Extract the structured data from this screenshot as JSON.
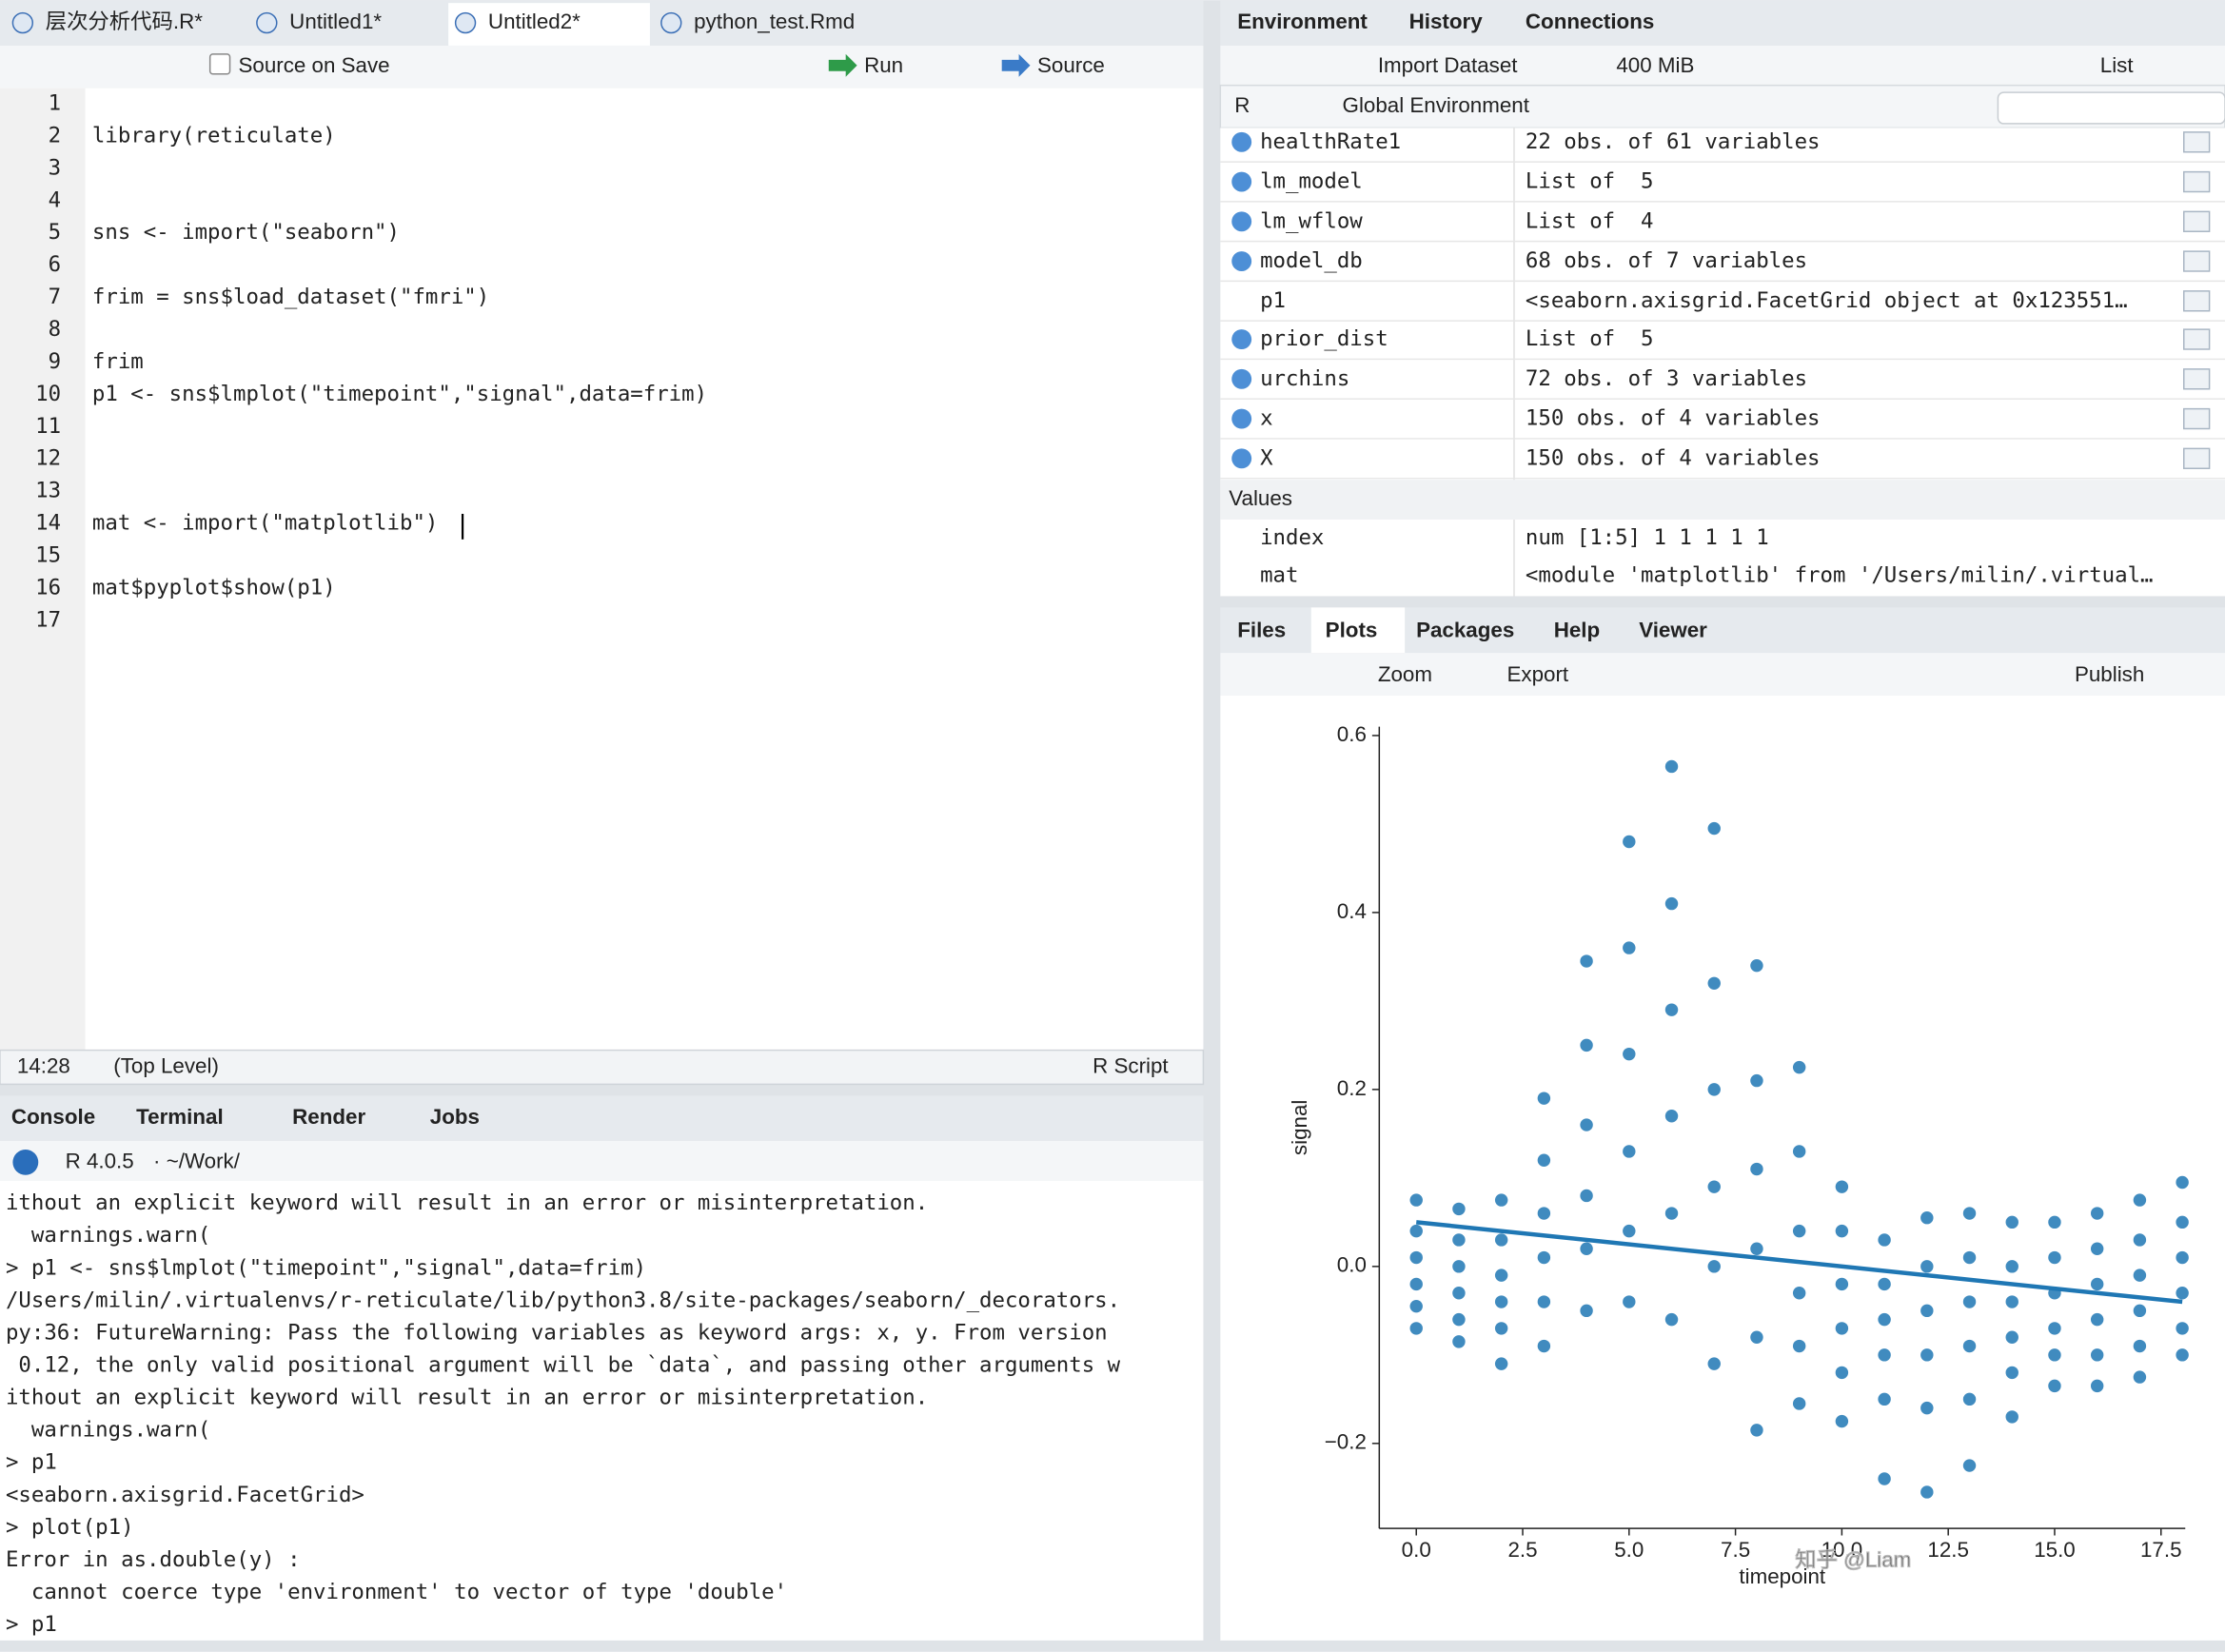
{
  "source_pane": {
    "tabs": [
      {
        "label": "层次分析代码.R*",
        "modified": true
      },
      {
        "label": "Untitled1*",
        "modified": true
      },
      {
        "label": "Untitled2*",
        "modified": true,
        "active": true
      },
      {
        "label": "python_test.Rmd",
        "modified": false
      }
    ],
    "toolbar": {
      "source_on_save": "Source on Save",
      "run": "Run",
      "source": "Source"
    },
    "line_numbers": [
      1,
      2,
      3,
      4,
      5,
      6,
      7,
      8,
      9,
      10,
      11,
      12,
      13,
      14,
      15,
      16,
      17
    ],
    "code": [
      {
        "line": 2,
        "text": "library(reticulate)"
      },
      {
        "line": 5,
        "text": "sns <- import(\"seaborn\")"
      },
      {
        "line": 7,
        "text": "frim = sns$load_dataset(\"fmri\")"
      },
      {
        "line": 9,
        "text": "frim"
      },
      {
        "line": 10,
        "text": "p1 <- sns$lmplot(\"timepoint\",\"signal\",data=frim)"
      },
      {
        "line": 14,
        "text": "mat <- import(\"matplotlib\")"
      },
      {
        "line": 16,
        "text": "mat$pyplot$show(p1)"
      }
    ],
    "status": {
      "position": "14:28",
      "scope": "(Top Level)",
      "file_type": "R Script"
    }
  },
  "console_pane": {
    "tabs": [
      "Console",
      "Terminal",
      "Render",
      "Jobs"
    ],
    "version": "R 4.0.5",
    "path": "· ~/Work/",
    "lines": [
      {
        "text": "ithout an explicit keyword will result in an error or misinterpretation.",
        "kind": "error"
      },
      {
        "text": "  warnings.warn(",
        "kind": "error"
      },
      {
        "text": "> p1 <- sns$lmplot(\"timepoint\",\"signal\",data=frim)",
        "kind": "input"
      },
      {
        "text": "/Users/milin/.virtualenvs/r-reticulate/lib/python3.8/site-packages/seaborn/_decorators.",
        "kind": "error"
      },
      {
        "text": "py:36: FutureWarning: Pass the following variables as keyword args: x, y. From version",
        "kind": "error"
      },
      {
        "text": " 0.12, the only valid positional argument will be `data`, and passing other arguments w",
        "kind": "error"
      },
      {
        "text": "ithout an explicit keyword will result in an error or misinterpretation.",
        "kind": "error"
      },
      {
        "text": "  warnings.warn(",
        "kind": "error"
      },
      {
        "text": "> p1",
        "kind": "input"
      },
      {
        "text": "<seaborn.axisgrid.FacetGrid>",
        "kind": "output"
      },
      {
        "text": "> plot(p1)",
        "kind": "input"
      },
      {
        "text": "Error in as.double(y) :",
        "kind": "error"
      },
      {
        "text": "  cannot coerce type 'environment' to vector of type 'double'",
        "kind": "error"
      },
      {
        "text": "> p1",
        "kind": "input"
      }
    ]
  },
  "environment_pane": {
    "tabs": [
      "Environment",
      "History",
      "Connections"
    ],
    "toolbar": {
      "import": "Import Dataset",
      "memory": "400 MiB",
      "view": "List",
      "language": "R",
      "scope": "Global Environment"
    },
    "rows": [
      {
        "name": "healthRate1",
        "value": "22 obs. of 61 variables",
        "expandable": true
      },
      {
        "name": "lm_model",
        "value": "List of  5",
        "expandable": true
      },
      {
        "name": "lm_wflow",
        "value": "List of  4",
        "expandable": true
      },
      {
        "name": "model_db",
        "value": "68 obs. of 7 variables",
        "expandable": true
      },
      {
        "name": "p1",
        "value": "<seaborn.axisgrid.FacetGrid object at 0x123551…",
        "expandable": false
      },
      {
        "name": "prior_dist",
        "value": "List of  5",
        "expandable": true
      },
      {
        "name": "urchins",
        "value": "72 obs. of 3 variables",
        "expandable": true
      },
      {
        "name": "x",
        "value": "150 obs. of 4 variables",
        "expandable": true
      },
      {
        "name": "X",
        "value": "150 obs. of 4 variables",
        "expandable": true
      }
    ],
    "values_header": "Values",
    "values": [
      {
        "name": "index",
        "value": "num [1:5] 1 1 1 1 1"
      },
      {
        "name": "mat",
        "value": "<module 'matplotlib' from '/Users/milin/.virtual…"
      }
    ]
  },
  "files_pane": {
    "tabs": [
      "Files",
      "Plots",
      "Packages",
      "Help",
      "Viewer"
    ],
    "active_tab": 1,
    "toolbar": {
      "zoom": "Zoom",
      "export": "Export",
      "publish": "Publish"
    },
    "watermark": "知乎 @Liam"
  },
  "chart_data": {
    "type": "scatter",
    "x_label": "timepoint",
    "y_label": "signal",
    "xlim": [
      -0.87,
      18.07
    ],
    "ylim": [
      -0.296,
      0.61
    ],
    "xticks": [
      {
        "value": 0,
        "label": "0.0"
      },
      2.5,
      {
        "value": 5,
        "label": "5.0"
      },
      7.5,
      {
        "value": 10,
        "label": "10.0"
      },
      12.5,
      {
        "value": 15,
        "label": "15.0"
      },
      17.5
    ],
    "yticks": [
      {
        "value": -0.2,
        "label": "−0.2"
      },
      {
        "value": 0,
        "label": "0.0"
      },
      0.2,
      0.4,
      0.6
    ],
    "series": [
      {
        "color": "#1f77b4",
        "x": [
          0,
          0,
          0,
          0,
          0,
          0,
          1,
          1,
          1,
          1,
          1,
          1,
          2,
          2,
          2,
          2,
          2,
          2,
          3,
          3,
          3,
          3,
          3,
          3,
          4,
          4,
          4,
          4,
          4,
          4,
          5,
          5,
          5,
          5,
          5,
          5,
          6,
          6,
          6,
          6,
          6,
          6,
          7,
          7,
          7,
          7,
          7,
          7,
          8,
          8,
          8,
          8,
          8,
          8,
          9,
          9,
          9,
          9,
          9,
          9,
          10,
          10,
          10,
          10,
          10,
          10,
          11,
          11,
          11,
          11,
          11,
          11,
          12,
          12,
          12,
          12,
          12,
          12,
          13,
          13,
          13,
          13,
          13,
          13,
          14,
          14,
          14,
          14,
          14,
          14,
          15,
          15,
          15,
          15,
          15,
          15,
          16,
          16,
          16,
          16,
          16,
          16,
          17,
          17,
          17,
          17,
          17,
          17,
          18,
          18,
          18,
          18,
          18,
          18
        ],
        "values": [
          0.075,
          0.04,
          0.01,
          -0.02,
          -0.045,
          -0.07,
          0.065,
          0.03,
          0,
          -0.03,
          -0.06,
          -0.085,
          0.075,
          0.03,
          -0.01,
          -0.04,
          -0.07,
          -0.11,
          0.19,
          0.12,
          0.06,
          0.01,
          -0.04,
          -0.09,
          0.345,
          0.25,
          0.16,
          0.08,
          0.02,
          -0.05,
          0.48,
          0.36,
          0.24,
          0.13,
          0.04,
          -0.04,
          0.565,
          0.41,
          0.29,
          0.17,
          0.06,
          -0.06,
          0.495,
          0.32,
          0.2,
          0.09,
          0,
          -0.11,
          0.34,
          0.21,
          0.11,
          0.02,
          -0.08,
          -0.185,
          0.225,
          0.13,
          0.04,
          -0.03,
          -0.09,
          -0.155,
          0.09,
          0.04,
          -0.02,
          -0.07,
          -0.12,
          -0.175,
          0.03,
          -0.02,
          -0.06,
          -0.1,
          -0.15,
          -0.24,
          0.055,
          0,
          -0.05,
          -0.1,
          -0.16,
          -0.255,
          0.06,
          0.01,
          -0.04,
          -0.09,
          -0.15,
          -0.225,
          0.05,
          0,
          -0.04,
          -0.08,
          -0.12,
          -0.17,
          0.05,
          0.01,
          -0.03,
          -0.07,
          -0.1,
          -0.135,
          0.06,
          0.02,
          -0.02,
          -0.06,
          -0.1,
          -0.135,
          0.075,
          0.03,
          -0.01,
          -0.05,
          -0.09,
          -0.125,
          0.095,
          0.05,
          0.01,
          -0.03,
          -0.07,
          -0.1
        ]
      }
    ],
    "fit": {
      "color": "#1f77b4",
      "x": [
        0,
        18
      ],
      "values": [
        0.05,
        -0.04
      ]
    }
  }
}
